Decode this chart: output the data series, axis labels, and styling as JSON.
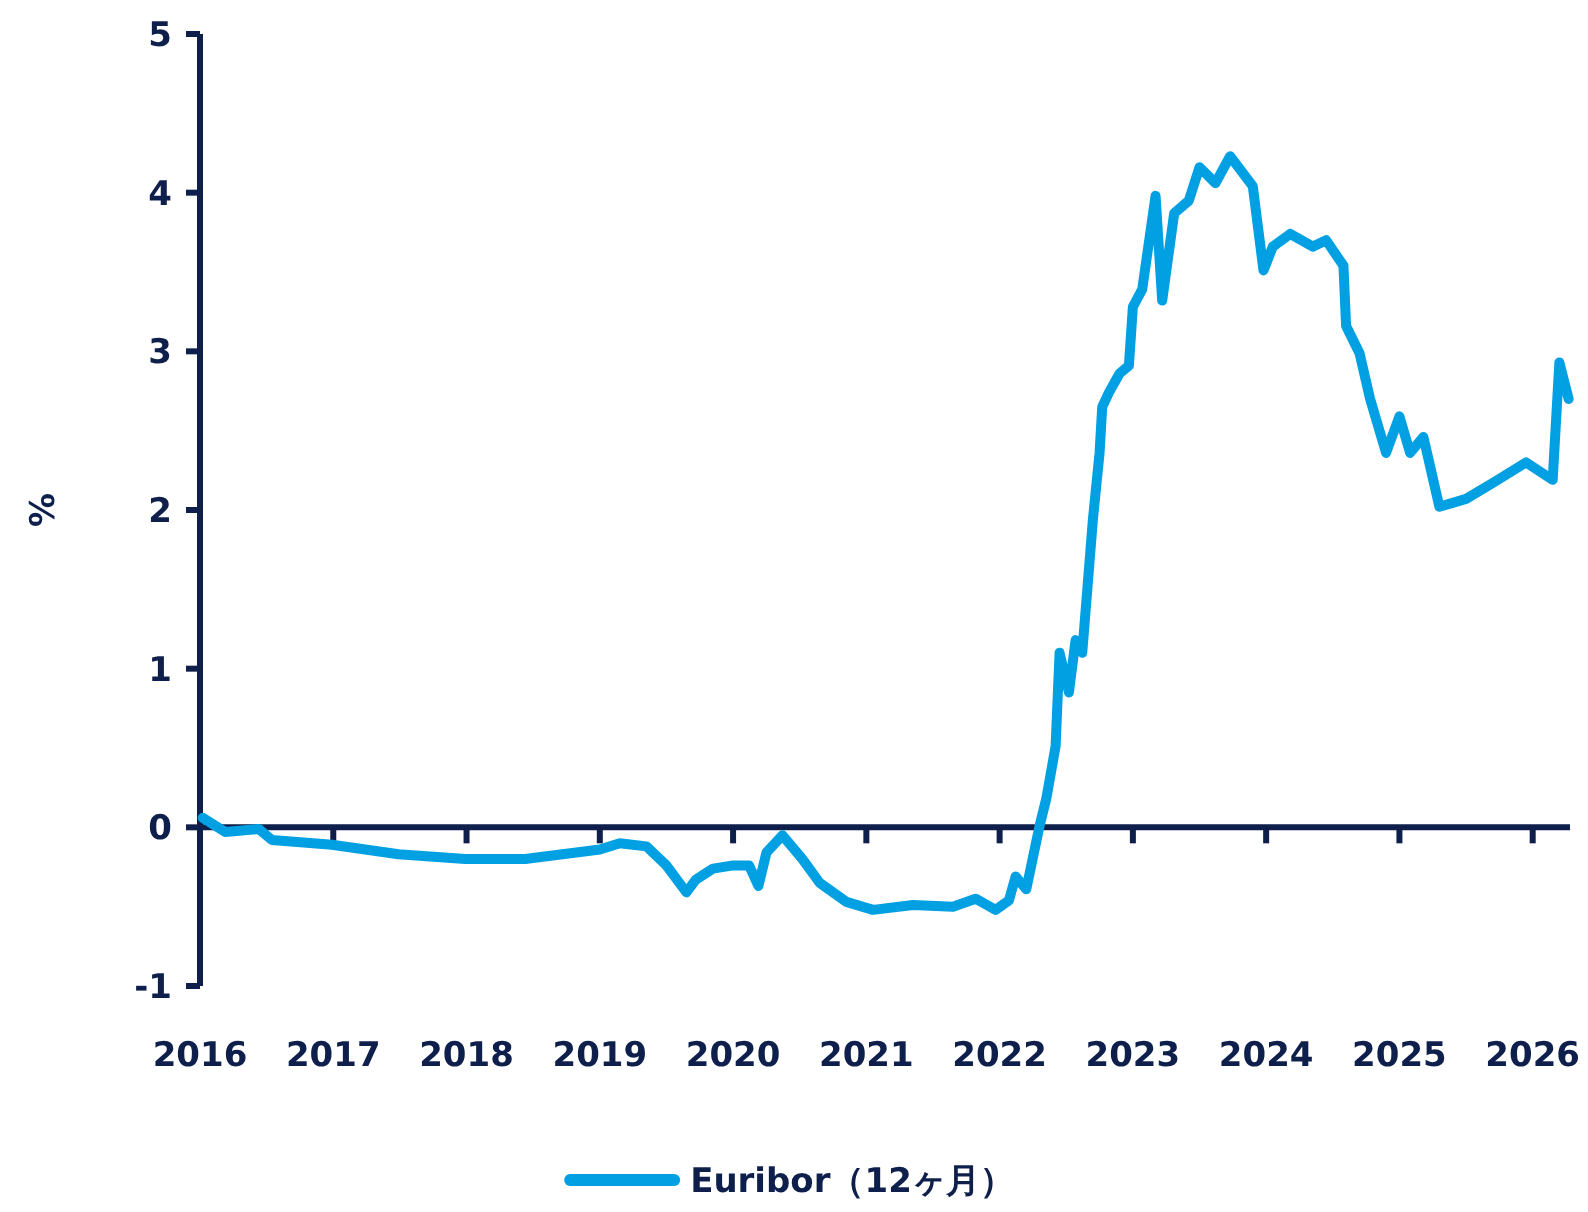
{
  "chart_data": {
    "type": "line",
    "ylabel": "%",
    "xlim": [
      2016,
      2026.28
    ],
    "ylim": [
      -1,
      5
    ],
    "xticks": [
      2016,
      2017,
      2018,
      2019,
      2020,
      2021,
      2022,
      2023,
      2024,
      2025,
      2026
    ],
    "yticks": [
      -1,
      0,
      1,
      2,
      3,
      4,
      5
    ],
    "grid": false,
    "legend": "bottom",
    "marker": "none",
    "line_style": "solid",
    "series": [
      {
        "name": "Euribor（12ヶ月）",
        "color": "#00a0e3",
        "x": [
          2016.02,
          2016.19,
          2016.44,
          2016.54,
          2016.99,
          2017.49,
          2017.99,
          2018.44,
          2019.0,
          2019.15,
          2019.35,
          2019.5,
          2019.65,
          2019.72,
          2019.85,
          2020.0,
          2020.12,
          2020.19,
          2020.25,
          2020.37,
          2020.52,
          2020.65,
          2020.85,
          2021.05,
          2021.35,
          2021.65,
          2021.82,
          2021.97,
          2022.07,
          2022.12,
          2022.2,
          2022.3,
          2022.35,
          2022.42,
          2022.45,
          2022.52,
          2022.57,
          2022.62,
          2022.7,
          2022.75,
          2022.77,
          2022.82,
          2022.9,
          2022.97,
          2023.0,
          2023.07,
          2023.17,
          2023.22,
          2023.31,
          2023.42,
          2023.5,
          2023.62,
          2023.73,
          2023.9,
          2023.98,
          2024.05,
          2024.18,
          2024.35,
          2024.45,
          2024.58,
          2024.6,
          2024.7,
          2024.78,
          2024.9,
          2025.0,
          2025.08,
          2025.18,
          2025.3,
          2025.5,
          2025.7,
          2025.95,
          2026.15,
          2026.2,
          2026.27
        ],
        "values": [
          0.06,
          -0.03,
          -0.01,
          -0.08,
          -0.11,
          -0.17,
          -0.2,
          -0.2,
          -0.14,
          -0.1,
          -0.12,
          -0.24,
          -0.41,
          -0.33,
          -0.26,
          -0.24,
          -0.24,
          -0.37,
          -0.16,
          -0.05,
          -0.2,
          -0.35,
          -0.47,
          -0.52,
          -0.49,
          -0.5,
          -0.45,
          -0.52,
          -0.46,
          -0.31,
          -0.39,
          0.01,
          0.18,
          0.51,
          1.1,
          0.85,
          1.18,
          1.1,
          1.94,
          2.36,
          2.65,
          2.74,
          2.86,
          2.91,
          3.28,
          3.39,
          3.98,
          3.32,
          3.87,
          3.95,
          4.16,
          4.06,
          4.23,
          4.04,
          3.51,
          3.66,
          3.74,
          3.66,
          3.7,
          3.54,
          3.16,
          2.99,
          2.7,
          2.36,
          2.59,
          2.36,
          2.46,
          2.02,
          2.07,
          2.17,
          2.3,
          2.19,
          2.93,
          2.7
        ]
      }
    ]
  }
}
